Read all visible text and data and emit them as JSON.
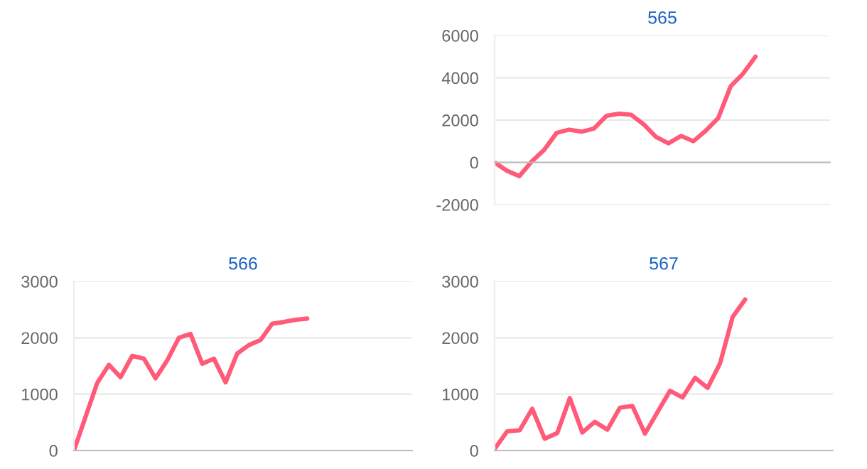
{
  "chart_data": [
    {
      "type": "line",
      "title": "565",
      "categories": [
        null,
        null,
        null,
        null,
        null,
        null,
        null,
        null,
        null,
        null,
        null,
        null,
        null,
        null,
        null,
        null,
        null,
        null,
        null,
        null,
        null,
        null,
        null,
        null,
        null,
        null,
        null,
        null
      ],
      "series": [
        {
          "color": "#ff5a78",
          "values": [
            0,
            -400,
            -650,
            50,
            600,
            1400,
            1550,
            1450,
            1600,
            2200,
            2300,
            2250,
            1800,
            1200,
            900,
            1250,
            1000,
            1500,
            2100,
            3600,
            4200,
            5000,
            null,
            null,
            null,
            null,
            null,
            null
          ]
        }
      ],
      "ylim": [
        -2000,
        6000
      ],
      "yticks": [
        -2000,
        0,
        2000,
        4000,
        6000
      ],
      "grid": "y",
      "tick_labels": "y",
      "marker": "none",
      "line_style": "solid"
    },
    {
      "type": "line",
      "title": "566",
      "categories": [
        null,
        null,
        null,
        null,
        null,
        null,
        null,
        null,
        null,
        null,
        null,
        null,
        null,
        null,
        null,
        null,
        null,
        null,
        null,
        null,
        null,
        null,
        null,
        null,
        null,
        null,
        null,
        null,
        null,
        null
      ],
      "series": [
        {
          "color": "#ff5a78",
          "values": [
            0,
            600,
            1200,
            1520,
            1300,
            1680,
            1630,
            1280,
            1600,
            2000,
            2070,
            1540,
            1630,
            1210,
            1720,
            1870,
            1960,
            2250,
            2280,
            2320,
            2340,
            null,
            null,
            null,
            null,
            null,
            null,
            null,
            null,
            null
          ]
        }
      ],
      "ylim": [
        0,
        3000
      ],
      "yticks": [
        0,
        1000,
        2000,
        3000
      ],
      "grid": "y",
      "tick_labels": "y",
      "marker": "none",
      "line_style": "solid"
    },
    {
      "type": "line",
      "title": "567",
      "categories": [
        null,
        null,
        null,
        null,
        null,
        null,
        null,
        null,
        null,
        null,
        null,
        null,
        null,
        null,
        null,
        null,
        null,
        null,
        null,
        null,
        null,
        null,
        null,
        null,
        null,
        null,
        null,
        null
      ],
      "series": [
        {
          "color": "#ff5a78",
          "values": [
            30,
            340,
            360,
            740,
            210,
            310,
            930,
            320,
            510,
            370,
            760,
            790,
            300,
            680,
            1060,
            940,
            1290,
            1110,
            1550,
            2370,
            2680,
            null,
            null,
            null,
            null,
            null,
            null,
            null
          ]
        }
      ],
      "ylim": [
        0,
        3000
      ],
      "yticks": [
        0,
        1000,
        2000,
        3000
      ],
      "grid": "y",
      "tick_labels": "y",
      "marker": "none",
      "line_style": "solid"
    }
  ]
}
